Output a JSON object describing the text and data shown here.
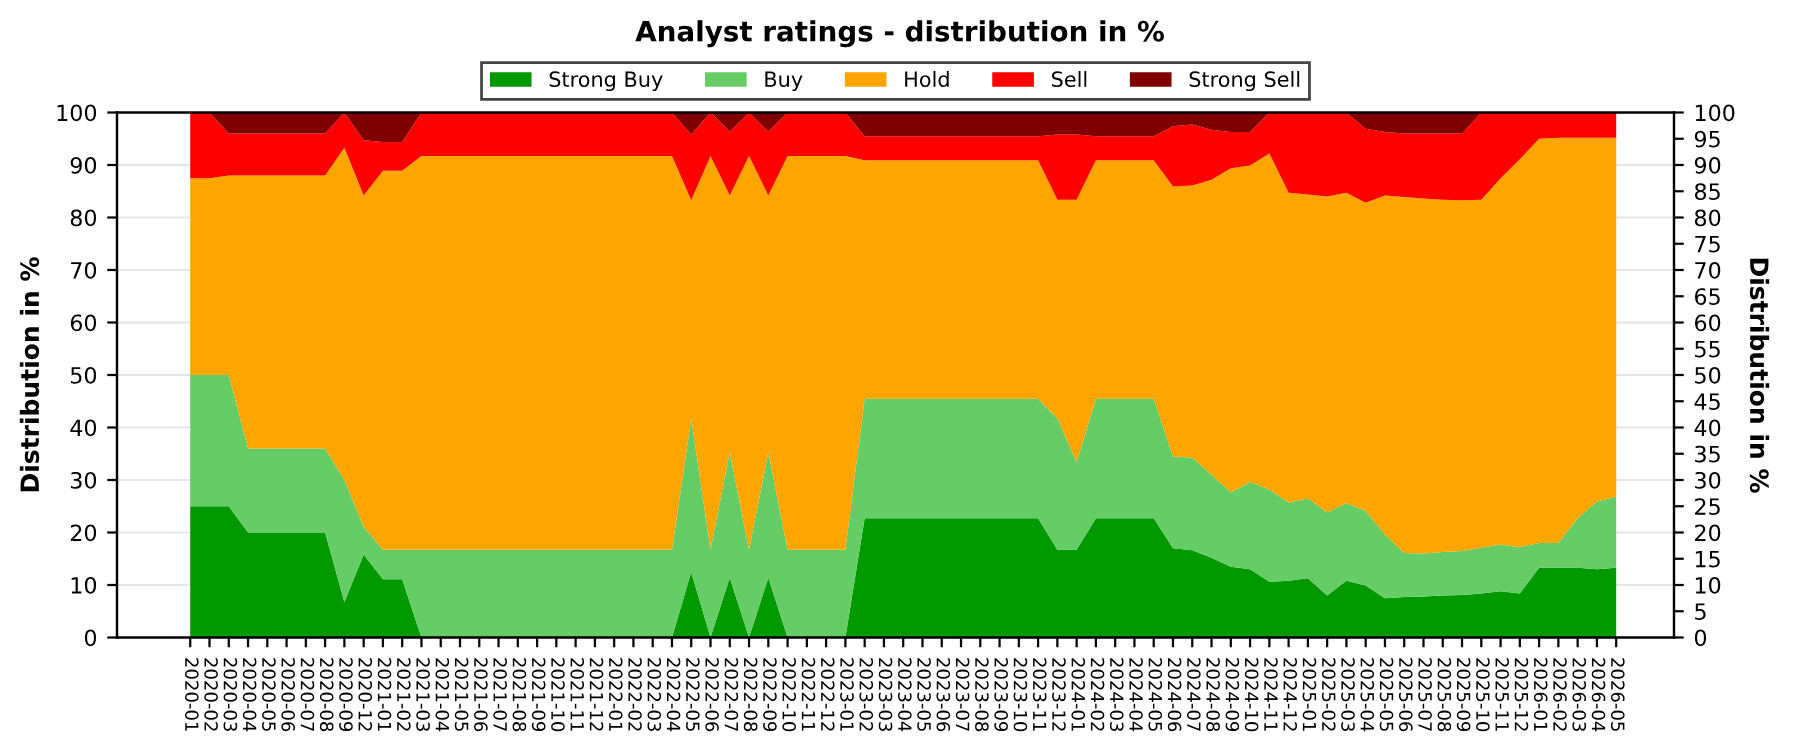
{
  "chart_data": {
    "type": "area",
    "stacked": true,
    "title": "Analyst ratings - distribution in %",
    "ylabel": "Distribution in %",
    "y2label": "Distribution in %",
    "categories": [
      "2020-01",
      "2020-02",
      "2020-03",
      "2020-04",
      "2020-05",
      "2020-06",
      "2020-07",
      "2020-08",
      "2020-09",
      "2020-12",
      "2021-01",
      "2021-02",
      "2021-03",
      "2021-04",
      "2021-05",
      "2021-06",
      "2021-07",
      "2021-08",
      "2021-09",
      "2021-10",
      "2021-11",
      "2021-12",
      "2022-01",
      "2022-02",
      "2022-03",
      "2022-04",
      "2022-05",
      "2022-06",
      "2022-07",
      "2022-08",
      "2022-09",
      "2022-10",
      "2022-11",
      "2022-12",
      "2023-01",
      "2023-02",
      "2023-03",
      "2023-04",
      "2023-05",
      "2023-06",
      "2023-07",
      "2023-08",
      "2023-09",
      "2023-10",
      "2023-11",
      "2023-12",
      "2024-01",
      "2024-02",
      "2024-03",
      "2024-04",
      "2024-05",
      "2024-06",
      "2024-07",
      "2024-08",
      "2024-09",
      "2024-10",
      "2024-11",
      "2024-12",
      "2025-01",
      "2025-02",
      "2025-03",
      "2025-04",
      "2025-05",
      "2025-06",
      "2025-07",
      "2025-08",
      "2025-09",
      "2025-10",
      "2025-11",
      "2025-12",
      "2026-01",
      "2026-02",
      "2026-03",
      "2026-04",
      "2026-05"
    ],
    "series": [
      {
        "name": "Strong Buy",
        "color": "#009900",
        "values": [
          25,
          25,
          25,
          20,
          20,
          20,
          20,
          20,
          6.7,
          15.8,
          11.1,
          11.1,
          0,
          0,
          0,
          0,
          0,
          0,
          0,
          0,
          0,
          0,
          0,
          0,
          0,
          0,
          12.5,
          0,
          11.4,
          0,
          11.4,
          0,
          0,
          0,
          0,
          22.7,
          22.7,
          22.7,
          22.7,
          22.7,
          22.7,
          22.7,
          22.7,
          22.7,
          22.7,
          16.7,
          16.7,
          22.7,
          22.7,
          22.7,
          22.7,
          17,
          16.6,
          15.2,
          13.5,
          13,
          10.6,
          10.8,
          11.3,
          8,
          10.8,
          9.9,
          7.5,
          7.7,
          7.8,
          8,
          8.1,
          8.4,
          8.8,
          8.4,
          13.3,
          13.3,
          13.3,
          13,
          13.3
        ]
      },
      {
        "name": "Buy",
        "color": "#66cc66",
        "values": [
          25,
          25,
          25,
          16,
          16,
          16,
          16,
          16,
          23.3,
          5.3,
          5.6,
          5.6,
          16.7,
          16.7,
          16.7,
          16.7,
          16.7,
          16.7,
          16.7,
          16.7,
          16.7,
          16.7,
          16.7,
          16.7,
          16.7,
          16.7,
          29.2,
          16.7,
          23.9,
          16.7,
          23.9,
          16.7,
          16.7,
          16.7,
          16.7,
          22.8,
          22.8,
          22.8,
          22.8,
          22.8,
          22.8,
          22.8,
          22.8,
          22.8,
          22.8,
          25,
          16.7,
          22.8,
          22.8,
          22.8,
          22.8,
          17.5,
          17.7,
          15.8,
          14.1,
          16.6,
          17.6,
          14.9,
          15.2,
          15.8,
          14.8,
          14.2,
          12.1,
          8.4,
          8.2,
          8.3,
          8.4,
          8.7,
          8.9,
          8.8,
          4.7,
          4.7,
          9.4,
          12.9,
          13.5
        ]
      },
      {
        "name": "Hold",
        "color": "#ffa500",
        "values": [
          37.5,
          37.5,
          38,
          52,
          52,
          52,
          52,
          52,
          63.3,
          63.1,
          72.2,
          72.2,
          75,
          75,
          75,
          75,
          75,
          75,
          75,
          75,
          75,
          75,
          75,
          75,
          75,
          75,
          41.6,
          75,
          48.9,
          75,
          48.9,
          75,
          75,
          75,
          75,
          45.4,
          45.4,
          45.4,
          45.4,
          45.4,
          45.4,
          45.4,
          45.4,
          45.4,
          45.4,
          41.7,
          50,
          45.4,
          45.4,
          45.4,
          45.4,
          51.4,
          51.8,
          56.2,
          61.8,
          60.3,
          64,
          59,
          57.9,
          60.2,
          59.1,
          58.7,
          64.6,
          67.8,
          67.6,
          67.1,
          66.8,
          66.3,
          69.8,
          73.9,
          77,
          77.2,
          72.5,
          69.3,
          68.4
        ]
      },
      {
        "name": "Sell",
        "color": "#ff0000",
        "values": [
          12.5,
          12.5,
          8,
          8,
          8,
          8,
          8,
          8,
          6.7,
          10.5,
          5.5,
          5.5,
          8.3,
          8.3,
          8.3,
          8.3,
          8.3,
          8.3,
          8.3,
          8.3,
          8.3,
          8.3,
          8.3,
          8.3,
          8.3,
          8.3,
          12.5,
          8.3,
          12.2,
          8.3,
          12.2,
          8.3,
          8.3,
          8.3,
          8.3,
          4.6,
          4.6,
          4.6,
          4.6,
          4.6,
          4.6,
          4.6,
          4.6,
          4.6,
          4.6,
          12.4,
          12.4,
          4.6,
          4.6,
          4.6,
          4.6,
          11.5,
          11.6,
          9.5,
          6.9,
          6.4,
          7.8,
          15.3,
          15.6,
          16,
          15.3,
          14.1,
          12.1,
          12.1,
          12.4,
          12.6,
          12.7,
          16.6,
          12.5,
          8.9,
          5,
          4.8,
          4.8,
          4.8,
          4.8
        ]
      },
      {
        "name": "Strong Sell",
        "color": "#800000",
        "values": [
          0,
          0,
          4,
          4,
          4,
          4,
          4,
          4,
          0,
          5.3,
          5.6,
          5.6,
          0,
          0,
          0,
          0,
          0,
          0,
          0,
          0,
          0,
          0,
          0,
          0,
          0,
          0,
          4.2,
          0,
          3.6,
          0,
          3.6,
          0,
          0,
          0,
          0,
          4.5,
          4.5,
          4.5,
          4.5,
          4.5,
          4.5,
          4.5,
          4.5,
          4.5,
          4.5,
          4.2,
          4.2,
          4.5,
          4.5,
          4.5,
          4.5,
          2.6,
          2.3,
          3.3,
          3.7,
          3.7,
          0,
          0,
          0,
          0,
          0,
          3.1,
          3.7,
          4,
          4,
          4,
          4,
          0,
          0,
          0,
          0,
          0,
          0,
          0,
          0
        ]
      }
    ],
    "ylim": [
      0,
      100
    ],
    "yticks": [
      0,
      10,
      20,
      30,
      40,
      50,
      60,
      70,
      80,
      90,
      100
    ],
    "y2lim": [
      0,
      100
    ],
    "y2ticks": [
      0,
      5,
      10,
      15,
      20,
      25,
      30,
      35,
      40,
      45,
      50,
      55,
      60,
      65,
      70,
      75,
      80,
      85,
      90,
      95,
      100
    ],
    "grid": "y",
    "legend": "top"
  }
}
